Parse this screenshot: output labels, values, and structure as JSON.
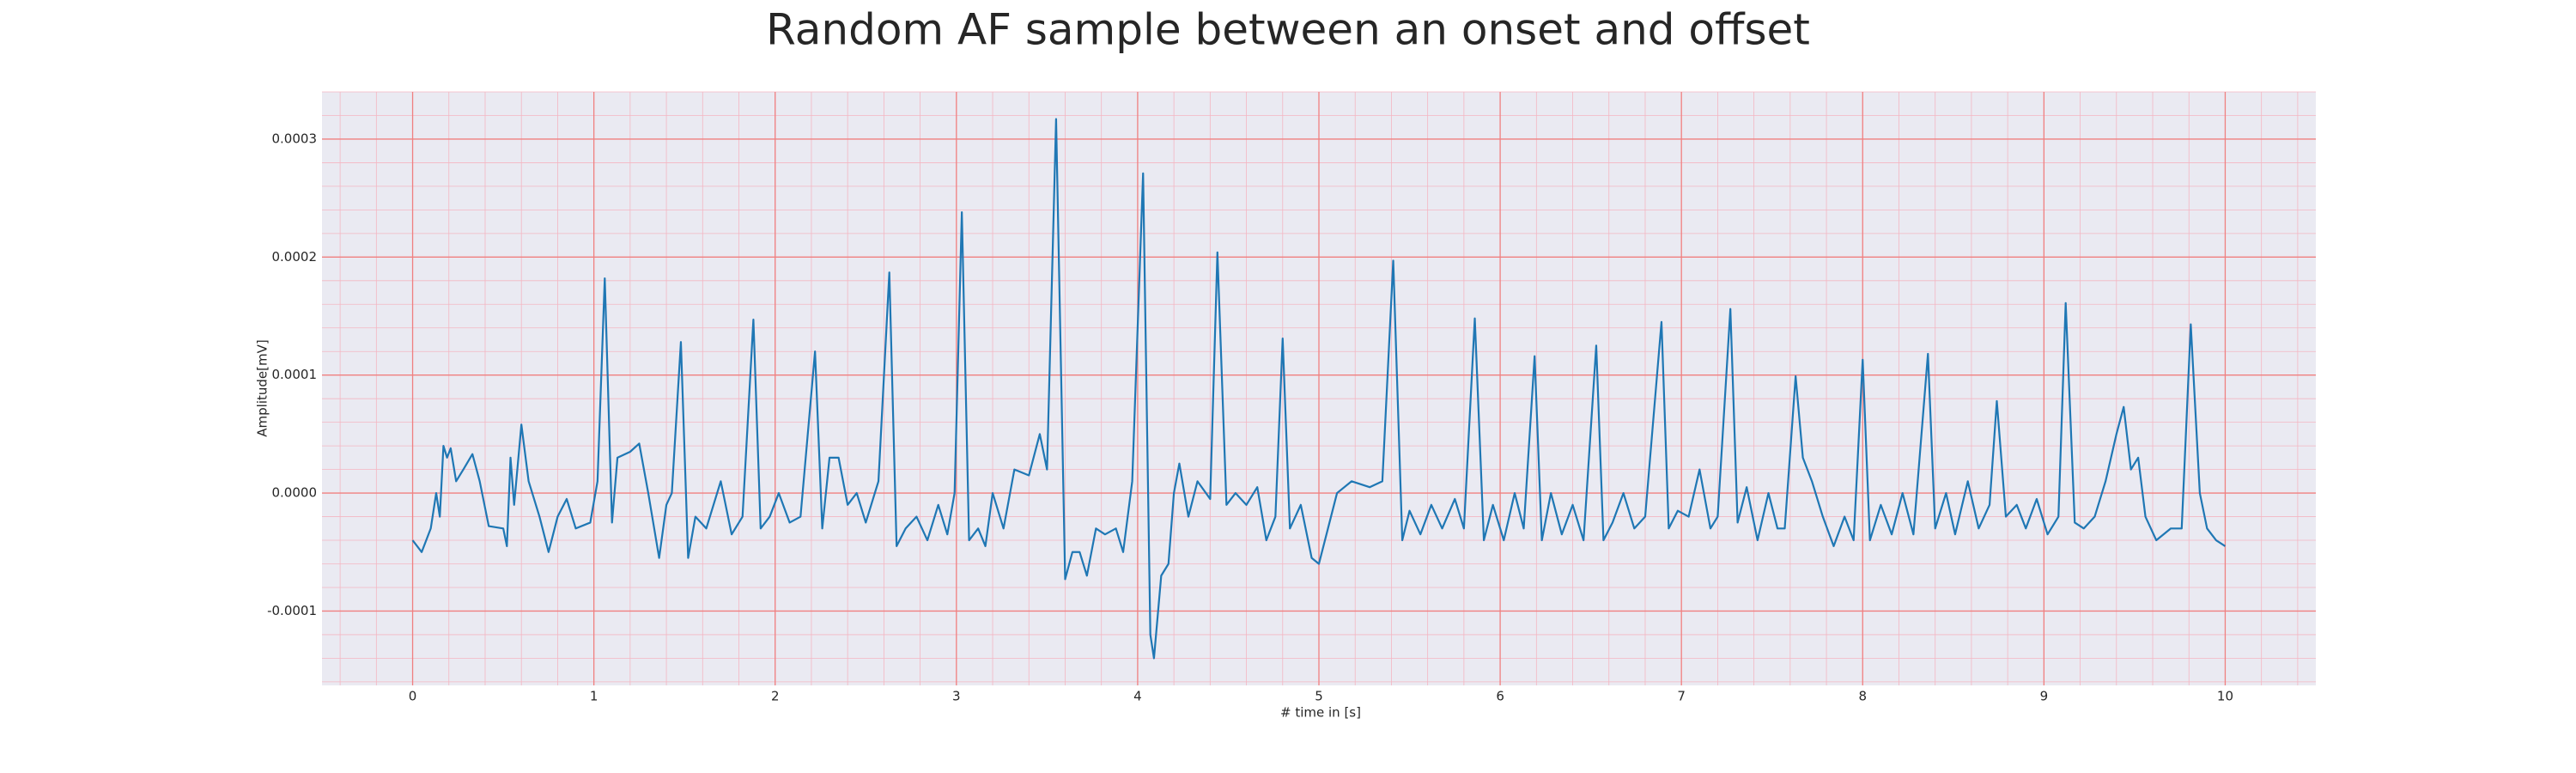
{
  "chart_data": {
    "type": "line",
    "title": "Random AF sample between an onset and offset",
    "xlabel": "# time in [s]",
    "ylabel": "Amplitude[mV]",
    "color": "#1f77b4",
    "grid": true,
    "minor_grid": true,
    "xlim": [
      -0.5,
      10.5
    ],
    "ylim": [
      -0.000163,
      0.00034
    ],
    "xticks": [
      0,
      1,
      2,
      3,
      4,
      5,
      6,
      7,
      8,
      9,
      10
    ],
    "yticks": [
      -0.0001,
      {
        "value": 0,
        "label": "0.0000"
      },
      0.0001,
      0.0002,
      0.0003
    ],
    "x": [
      0,
      0.05,
      0.1,
      0.13,
      0.15,
      0.17,
      0.19,
      0.21,
      0.24,
      0.28,
      0.33,
      0.37,
      0.42,
      0.5,
      0.52,
      0.54,
      0.56,
      0.6,
      0.64,
      0.7,
      0.75,
      0.8,
      0.85,
      0.9,
      0.98,
      1.02,
      1.06,
      1.1,
      1.13,
      1.2,
      1.25,
      1.3,
      1.36,
      1.4,
      1.43,
      1.48,
      1.52,
      1.56,
      1.62,
      1.7,
      1.76,
      1.82,
      1.88,
      1.92,
      1.97,
      2.02,
      2.08,
      2.14,
      2.22,
      2.26,
      2.3,
      2.35,
      2.4,
      2.45,
      2.5,
      2.57,
      2.63,
      2.67,
      2.72,
      2.78,
      2.84,
      2.9,
      2.95,
      2.99,
      3.03,
      3.07,
      3.12,
      3.16,
      3.2,
      3.26,
      3.32,
      3.4,
      3.46,
      3.5,
      3.55,
      3.6,
      3.64,
      3.68,
      3.72,
      3.77,
      3.82,
      3.88,
      3.92,
      3.97,
      4.03,
      4.07,
      4.09,
      4.13,
      4.17,
      4.2,
      4.23,
      4.28,
      4.33,
      4.4,
      4.44,
      4.49,
      4.54,
      4.6,
      4.66,
      4.71,
      4.76,
      4.8,
      4.84,
      4.9,
      4.96,
      5.0,
      5.05,
      5.1,
      5.18,
      5.28,
      5.35,
      5.41,
      5.46,
      5.5,
      5.56,
      5.62,
      5.68,
      5.75,
      5.8,
      5.86,
      5.91,
      5.96,
      6.02,
      6.08,
      6.13,
      6.19,
      6.23,
      6.28,
      6.34,
      6.4,
      6.46,
      6.53,
      6.57,
      6.62,
      6.68,
      6.74,
      6.8,
      6.89,
      6.93,
      6.98,
      7.04,
      7.1,
      7.16,
      7.2,
      7.27,
      7.31,
      7.36,
      7.42,
      7.48,
      7.53,
      7.57,
      7.63,
      7.67,
      7.72,
      7.78,
      7.84,
      7.9,
      7.95,
      8.0,
      8.04,
      8.1,
      8.16,
      8.22,
      8.28,
      8.36,
      8.4,
      8.46,
      8.51,
      8.58,
      8.64,
      8.7,
      8.74,
      8.79,
      8.85,
      8.9,
      8.96,
      9.02,
      9.08,
      9.12,
      9.17,
      9.22,
      9.28,
      9.34,
      9.4,
      9.44,
      9.48,
      9.52,
      9.56,
      9.62,
      9.7,
      9.76,
      9.81,
      9.86,
      9.9,
      9.95,
      10.0
    ],
    "values": [
      -4e-05,
      -5e-05,
      -3e-05,
      0,
      -2e-05,
      4e-05,
      3e-05,
      3.8e-05,
      1e-05,
      2e-05,
      3.3e-05,
      1e-05,
      -2.8e-05,
      -3e-05,
      -4.5e-05,
      3e-05,
      -1e-05,
      5.8e-05,
      1e-05,
      -2e-05,
      -5e-05,
      -2e-05,
      -5e-06,
      -3e-05,
      -2.5e-05,
      1e-05,
      0.000182,
      -2.5e-05,
      3e-05,
      3.5e-05,
      4.2e-05,
      0,
      -5.5e-05,
      -1e-05,
      0,
      0.000128,
      -5.5e-05,
      -2e-05,
      -3e-05,
      1e-05,
      -3.5e-05,
      -2e-05,
      0.000147,
      -3e-05,
      -2e-05,
      0,
      -2.5e-05,
      -2e-05,
      0.00012,
      -3e-05,
      3e-05,
      3e-05,
      -1e-05,
      0,
      -2.5e-05,
      1e-05,
      0.000187,
      -4.5e-05,
      -3e-05,
      -2e-05,
      -4e-05,
      -1e-05,
      -3.5e-05,
      0,
      0.000238,
      -4e-05,
      -3e-05,
      -4.5e-05,
      0,
      -3e-05,
      2e-05,
      1.5e-05,
      5e-05,
      2e-05,
      0.000317,
      -7.3e-05,
      -5e-05,
      -5e-05,
      -7e-05,
      -3e-05,
      -3.5e-05,
      -3e-05,
      -5e-05,
      1e-05,
      0.000271,
      -0.00012,
      -0.00014,
      -7e-05,
      -6e-05,
      0,
      2.5e-05,
      -2e-05,
      1e-05,
      -5e-06,
      0.000204,
      -1e-05,
      0,
      -1e-05,
      5e-06,
      -4e-05,
      -2e-05,
      0.000131,
      -3e-05,
      -1e-05,
      -5.5e-05,
      -6e-05,
      -3e-05,
      0,
      1e-05,
      5e-06,
      1e-05,
      0.000197,
      -4e-05,
      -1.5e-05,
      -3.5e-05,
      -1e-05,
      -3e-05,
      -5e-06,
      -3e-05,
      0.000148,
      -4e-05,
      -1e-05,
      -4e-05,
      0,
      -3e-05,
      0.000116,
      -4e-05,
      0,
      -3.5e-05,
      -1e-05,
      -4e-05,
      0.000125,
      -4e-05,
      -2.5e-05,
      0,
      -3e-05,
      -2e-05,
      0.000145,
      -3e-05,
      -1.5e-05,
      -2e-05,
      2e-05,
      -3e-05,
      -2e-05,
      0.000156,
      -2.5e-05,
      5e-06,
      -4e-05,
      0,
      -3e-05,
      -3e-05,
      9.9e-05,
      3e-05,
      1e-05,
      -2e-05,
      -4.5e-05,
      -2e-05,
      -4e-05,
      0.000113,
      -4e-05,
      -1e-05,
      -3.5e-05,
      0,
      -3.5e-05,
      0.000118,
      -3e-05,
      0,
      -3.5e-05,
      1e-05,
      -3e-05,
      -1e-05,
      7.8e-05,
      -2e-05,
      -1e-05,
      -3e-05,
      -5e-06,
      -3.5e-05,
      -2e-05,
      0.000161,
      -2.5e-05,
      -3e-05,
      -2e-05,
      1e-05,
      5e-05,
      7.3e-05,
      2e-05,
      3e-05,
      -2e-05,
      -4e-05,
      -3e-05,
      -3e-05,
      0.000143,
      0,
      -3e-05,
      -4e-05,
      -4.5e-05
    ]
  }
}
